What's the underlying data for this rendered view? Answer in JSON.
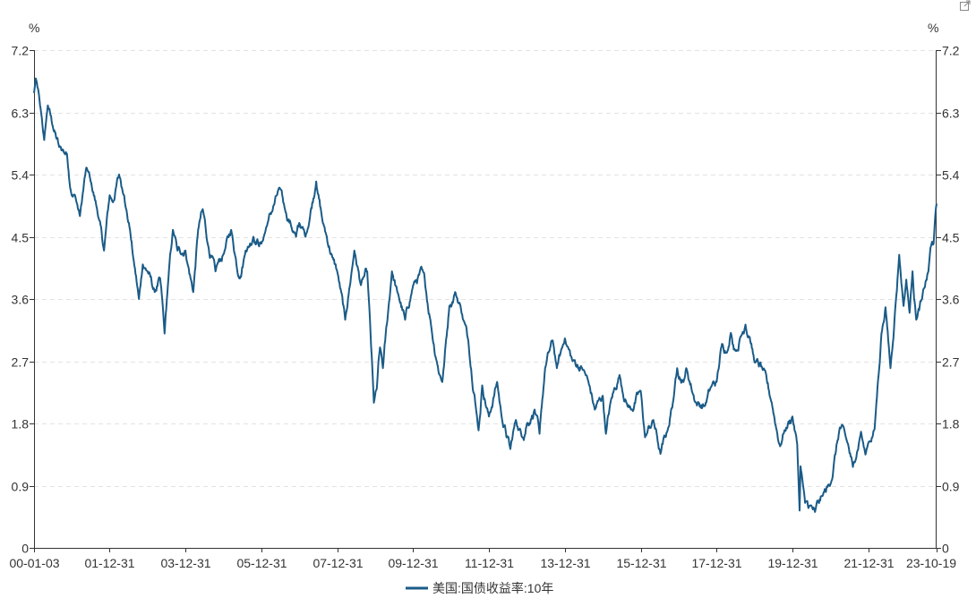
{
  "chart_data": {
    "type": "line",
    "y_unit_left": "%",
    "y_unit_right": "%",
    "ylim": [
      0,
      7.2
    ],
    "y_ticks": [
      "0",
      "0.9",
      "1.8",
      "2.7",
      "3.6",
      "4.5",
      "5.4",
      "6.3",
      "7.2"
    ],
    "x_ticks": [
      "00-01-03",
      "01-12-31",
      "03-12-31",
      "05-12-31",
      "07-12-31",
      "09-12-31",
      "11-12-31",
      "13-12-31",
      "15-12-31",
      "17-12-31",
      "19-12-31",
      "21-12-31",
      "23-10-19"
    ],
    "grid": true,
    "legend_position": "bottom-center",
    "series": [
      {
        "name": "美国:国债收益率:10年",
        "color": "#1a5b87",
        "points": [
          [
            "2000-01-03",
            6.58
          ],
          [
            "2000-01-20",
            6.79
          ],
          [
            "2000-03-01",
            6.4
          ],
          [
            "2000-04-10",
            5.9
          ],
          [
            "2000-05-15",
            6.4
          ],
          [
            "2000-07-01",
            6.1
          ],
          [
            "2000-09-01",
            5.8
          ],
          [
            "2000-11-15",
            5.7
          ],
          [
            "2000-12-31",
            5.1
          ],
          [
            "2001-02-01",
            5.1
          ],
          [
            "2001-03-20",
            4.8
          ],
          [
            "2001-05-20",
            5.5
          ],
          [
            "2001-07-01",
            5.3
          ],
          [
            "2001-09-01",
            4.9
          ],
          [
            "2001-11-07",
            4.3
          ],
          [
            "2001-12-31",
            5.1
          ],
          [
            "2002-02-01",
            5.0
          ],
          [
            "2002-04-01",
            5.4
          ],
          [
            "2002-05-20",
            5.1
          ],
          [
            "2002-07-15",
            4.6
          ],
          [
            "2002-08-15",
            4.2
          ],
          [
            "2002-10-09",
            3.6
          ],
          [
            "2002-11-15",
            4.1
          ],
          [
            "2003-01-01",
            4.0
          ],
          [
            "2003-03-10",
            3.7
          ],
          [
            "2003-05-01",
            3.9
          ],
          [
            "2003-06-13",
            3.1
          ],
          [
            "2003-07-15",
            3.8
          ],
          [
            "2003-09-01",
            4.6
          ],
          [
            "2003-10-15",
            4.3
          ],
          [
            "2003-12-31",
            4.3
          ],
          [
            "2004-03-15",
            3.7
          ],
          [
            "2004-05-01",
            4.6
          ],
          [
            "2004-06-14",
            4.9
          ],
          [
            "2004-08-01",
            4.4
          ],
          [
            "2004-10-15",
            4.0
          ],
          [
            "2004-12-31",
            4.25
          ],
          [
            "2005-03-15",
            4.6
          ],
          [
            "2005-06-01",
            3.9
          ],
          [
            "2005-08-01",
            4.3
          ],
          [
            "2005-10-15",
            4.5
          ],
          [
            "2005-12-31",
            4.4
          ],
          [
            "2006-03-01",
            4.7
          ],
          [
            "2006-06-28",
            5.2
          ],
          [
            "2006-08-15",
            4.9
          ],
          [
            "2006-11-30",
            4.5
          ],
          [
            "2006-12-31",
            4.7
          ],
          [
            "2007-03-01",
            4.5
          ],
          [
            "2007-06-12",
            5.3
          ],
          [
            "2007-08-15",
            4.7
          ],
          [
            "2007-11-15",
            4.2
          ],
          [
            "2007-12-31",
            4.0
          ],
          [
            "2008-03-17",
            3.3
          ],
          [
            "2008-06-13",
            4.3
          ],
          [
            "2008-08-15",
            3.8
          ],
          [
            "2008-10-15",
            4.0
          ],
          [
            "2008-12-18",
            2.1
          ],
          [
            "2009-01-15",
            2.3
          ],
          [
            "2009-02-15",
            2.9
          ],
          [
            "2009-03-15",
            2.6
          ],
          [
            "2009-06-10",
            4.0
          ],
          [
            "2009-08-01",
            3.7
          ],
          [
            "2009-10-15",
            3.3
          ],
          [
            "2009-12-31",
            3.8
          ],
          [
            "2010-04-05",
            4.0
          ],
          [
            "2010-06-15",
            3.3
          ],
          [
            "2010-08-15",
            2.7
          ],
          [
            "2010-10-08",
            2.4
          ],
          [
            "2010-12-15",
            3.5
          ],
          [
            "2011-02-08",
            3.7
          ],
          [
            "2011-04-01",
            3.5
          ],
          [
            "2011-06-15",
            3.0
          ],
          [
            "2011-08-15",
            2.2
          ],
          [
            "2011-09-22",
            1.7
          ],
          [
            "2011-10-27",
            2.35
          ],
          [
            "2011-12-31",
            1.9
          ],
          [
            "2012-03-19",
            2.4
          ],
          [
            "2012-05-01",
            1.9
          ],
          [
            "2012-07-24",
            1.43
          ],
          [
            "2012-09-15",
            1.85
          ],
          [
            "2012-11-15",
            1.6
          ],
          [
            "2012-12-31",
            1.8
          ],
          [
            "2013-03-15",
            2.0
          ],
          [
            "2013-05-01",
            1.65
          ],
          [
            "2013-06-24",
            2.6
          ],
          [
            "2013-09-05",
            3.0
          ],
          [
            "2013-10-15",
            2.6
          ],
          [
            "2013-12-31",
            3.03
          ],
          [
            "2014-03-15",
            2.7
          ],
          [
            "2014-06-15",
            2.6
          ],
          [
            "2014-08-15",
            2.4
          ],
          [
            "2014-10-15",
            2.0
          ],
          [
            "2014-12-31",
            2.2
          ],
          [
            "2015-01-30",
            1.65
          ],
          [
            "2015-03-15",
            2.1
          ],
          [
            "2015-06-10",
            2.5
          ],
          [
            "2015-08-15",
            2.1
          ],
          [
            "2015-10-01",
            2.0
          ],
          [
            "2015-12-31",
            2.27
          ],
          [
            "2016-02-11",
            1.6
          ],
          [
            "2016-05-01",
            1.85
          ],
          [
            "2016-07-08",
            1.36
          ],
          [
            "2016-09-15",
            1.7
          ],
          [
            "2016-11-15",
            2.2
          ],
          [
            "2016-12-16",
            2.6
          ],
          [
            "2017-02-15",
            2.4
          ],
          [
            "2017-03-13",
            2.6
          ],
          [
            "2017-06-14",
            2.1
          ],
          [
            "2017-09-07",
            2.05
          ],
          [
            "2017-11-15",
            2.35
          ],
          [
            "2017-12-31",
            2.4
          ],
          [
            "2018-02-21",
            2.95
          ],
          [
            "2018-04-15",
            2.85
          ],
          [
            "2018-05-17",
            3.11
          ],
          [
            "2018-07-01",
            2.85
          ],
          [
            "2018-10-05",
            3.23
          ],
          [
            "2018-11-15",
            3.05
          ],
          [
            "2018-12-31",
            2.69
          ],
          [
            "2019-03-15",
            2.6
          ],
          [
            "2019-06-15",
            2.1
          ],
          [
            "2019-09-03",
            1.47
          ],
          [
            "2019-10-15",
            1.7
          ],
          [
            "2019-12-31",
            1.9
          ],
          [
            "2020-02-15",
            1.5
          ],
          [
            "2020-03-09",
            0.54
          ],
          [
            "2020-03-18",
            1.18
          ],
          [
            "2020-05-01",
            0.65
          ],
          [
            "2020-08-04",
            0.52
          ],
          [
            "2020-10-15",
            0.75
          ],
          [
            "2020-12-31",
            0.92
          ],
          [
            "2021-03-31",
            1.74
          ],
          [
            "2021-06-01",
            1.58
          ],
          [
            "2021-08-04",
            1.17
          ],
          [
            "2021-10-21",
            1.68
          ],
          [
            "2021-12-03",
            1.35
          ],
          [
            "2021-12-31",
            1.52
          ],
          [
            "2022-03-01",
            1.72
          ],
          [
            "2022-05-06",
            3.1
          ],
          [
            "2022-06-14",
            3.48
          ],
          [
            "2022-08-01",
            2.6
          ],
          [
            "2022-09-15",
            3.45
          ],
          [
            "2022-10-24",
            4.24
          ],
          [
            "2022-12-05",
            3.5
          ],
          [
            "2022-12-31",
            3.88
          ],
          [
            "2023-02-01",
            3.4
          ],
          [
            "2023-03-01",
            4.0
          ],
          [
            "2023-04-06",
            3.3
          ],
          [
            "2023-06-01",
            3.6
          ],
          [
            "2023-08-01",
            4.0
          ],
          [
            "2023-08-21",
            4.34
          ],
          [
            "2023-09-20",
            4.4
          ],
          [
            "2023-10-06",
            4.8
          ],
          [
            "2023-10-19",
            4.98
          ]
        ]
      }
    ]
  }
}
